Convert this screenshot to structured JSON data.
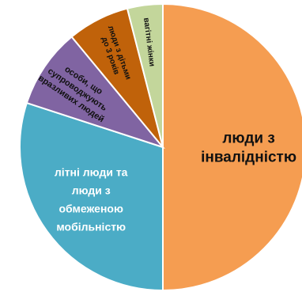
{
  "chart_data": {
    "type": "pie",
    "title": "",
    "slices": [
      {
        "label": [
          "люди з",
          "інвалідністю"
        ],
        "value": 50,
        "color": "#F59D51"
      },
      {
        "label": [
          "літні люди та",
          "люди з",
          "обмеженою",
          "мобільністю"
        ],
        "value": 30,
        "color": "#4BACC6"
      },
      {
        "label": [
          "особи, що",
          "супроводжують",
          "вразливих людей"
        ],
        "value": 9,
        "color": "#8064A2"
      },
      {
        "label": [
          "люди з дітьми",
          "до 3 років"
        ],
        "value": 7,
        "color": "#C0620A"
      },
      {
        "label": [
          "вагітні жінки"
        ],
        "value": 4,
        "color": "#C3D69B"
      }
    ],
    "legend": "none",
    "start_angle": "12 o'clock",
    "direction": "clockwise"
  }
}
